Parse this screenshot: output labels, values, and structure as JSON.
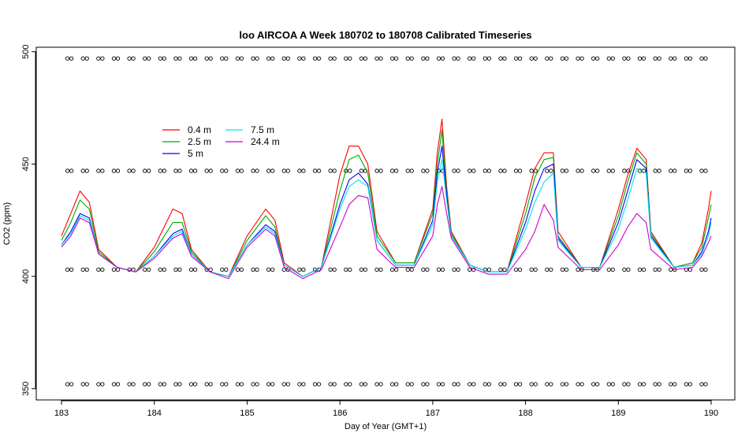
{
  "chart_data": {
    "type": "line",
    "title": "loo AIRCOA A  Week 180702 to 180708  Calibrated Timeseries",
    "xlabel": "Day of Year (GMT+1)",
    "ylabel": "CO2 (ppm)",
    "xlim": [
      182.7,
      190.3
    ],
    "ylim": [
      345,
      502
    ],
    "x_ticks": [
      183,
      184,
      185,
      186,
      187,
      188,
      189,
      190
    ],
    "x_tick_labels": [
      "183",
      "184",
      "185",
      "186",
      "187",
      "188",
      "189",
      "190"
    ],
    "y_ticks": [
      350,
      400,
      450,
      500
    ],
    "y_tick_labels": [
      "350",
      "400",
      "450",
      "500"
    ],
    "grid": false,
    "legend_position": "top-left",
    "series": [
      {
        "name": "0.4 m",
        "color": "#ff0000",
        "x": [
          183.0,
          183.1,
          183.2,
          183.3,
          183.4,
          183.6,
          183.8,
          184.0,
          184.2,
          184.3,
          184.4,
          184.6,
          184.8,
          185.0,
          185.2,
          185.3,
          185.4,
          185.6,
          185.8,
          186.0,
          186.1,
          186.2,
          186.3,
          186.4,
          186.6,
          186.8,
          187.0,
          187.05,
          187.1,
          187.15,
          187.2,
          187.4,
          187.6,
          187.8,
          188.0,
          188.1,
          188.2,
          188.3,
          188.35,
          188.6,
          188.8,
          189.0,
          189.1,
          189.2,
          189.3,
          189.35,
          189.6,
          189.8,
          189.9,
          189.97,
          190.0
        ],
        "y": [
          418,
          428,
          438,
          433,
          412,
          404,
          402,
          413,
          430,
          428,
          412,
          402,
          400,
          418,
          430,
          425,
          406,
          400,
          404,
          445,
          458,
          458,
          450,
          420,
          406,
          406,
          430,
          455,
          470,
          440,
          420,
          405,
          402,
          402,
          432,
          448,
          455,
          455,
          420,
          404,
          404,
          430,
          445,
          457,
          452,
          420,
          404,
          406,
          415,
          430,
          438
        ]
      },
      {
        "name": "2.5 m",
        "color": "#00aa00",
        "x": [
          183.0,
          183.1,
          183.2,
          183.3,
          183.4,
          183.6,
          183.8,
          184.0,
          184.2,
          184.3,
          184.4,
          184.6,
          184.8,
          185.0,
          185.2,
          185.3,
          185.4,
          185.6,
          185.8,
          186.0,
          186.1,
          186.2,
          186.3,
          186.4,
          186.6,
          186.8,
          187.0,
          187.05,
          187.1,
          187.15,
          187.2,
          187.4,
          187.6,
          187.8,
          188.0,
          188.1,
          188.2,
          188.3,
          188.35,
          188.6,
          188.8,
          189.0,
          189.1,
          189.2,
          189.3,
          189.35,
          189.6,
          189.8,
          189.9,
          189.97,
          190.0
        ],
        "y": [
          416,
          424,
          434,
          430,
          411,
          404,
          402,
          411,
          424,
          424,
          411,
          402,
          400,
          416,
          427,
          422,
          405,
          400,
          404,
          438,
          452,
          454,
          446,
          418,
          406,
          406,
          428,
          450,
          465,
          438,
          419,
          405,
          402,
          402,
          428,
          444,
          452,
          453,
          418,
          404,
          404,
          427,
          442,
          455,
          450,
          419,
          404,
          406,
          413,
          426,
          432
        ]
      },
      {
        "name": "5 m",
        "color": "#0000ff",
        "x": [
          183.0,
          183.1,
          183.2,
          183.3,
          183.4,
          183.6,
          183.8,
          184.0,
          184.2,
          184.3,
          184.4,
          184.6,
          184.8,
          185.0,
          185.2,
          185.3,
          185.4,
          185.6,
          185.8,
          186.0,
          186.1,
          186.2,
          186.3,
          186.4,
          186.6,
          186.8,
          187.0,
          187.05,
          187.1,
          187.15,
          187.2,
          187.4,
          187.6,
          187.8,
          188.0,
          188.1,
          188.2,
          188.3,
          188.35,
          188.6,
          188.8,
          189.0,
          189.1,
          189.2,
          189.3,
          189.35,
          189.6,
          189.8,
          189.9,
          189.97,
          190.0
        ],
        "y": [
          414,
          420,
          428,
          426,
          410,
          404,
          402,
          409,
          419,
          421,
          410,
          402,
          400,
          414,
          423,
          420,
          405,
          400,
          404,
          432,
          443,
          446,
          441,
          416,
          405,
          405,
          425,
          446,
          458,
          436,
          418,
          405,
          402,
          402,
          424,
          438,
          448,
          450,
          417,
          404,
          404,
          424,
          438,
          452,
          448,
          418,
          404,
          405,
          411,
          420,
          426
        ]
      },
      {
        "name": "7.5 m",
        "color": "#00e5e5",
        "x": [
          183.0,
          183.1,
          183.2,
          183.3,
          183.4,
          183.6,
          183.8,
          184.0,
          184.2,
          184.3,
          184.4,
          184.6,
          184.8,
          185.0,
          185.2,
          185.3,
          185.4,
          185.6,
          185.8,
          186.0,
          186.1,
          186.2,
          186.3,
          186.4,
          186.6,
          186.8,
          187.0,
          187.05,
          187.1,
          187.15,
          187.2,
          187.4,
          187.6,
          187.8,
          188.0,
          188.1,
          188.2,
          188.3,
          188.35,
          188.6,
          188.8,
          189.0,
          189.1,
          189.2,
          189.3,
          189.35,
          189.6,
          189.8,
          189.9,
          189.97,
          190.0
        ],
        "y": [
          414,
          419,
          427,
          425,
          410,
          404,
          402,
          409,
          418,
          420,
          410,
          402,
          400,
          414,
          422,
          419,
          405,
          400,
          404,
          430,
          440,
          443,
          440,
          416,
          405,
          405,
          423,
          442,
          452,
          434,
          418,
          405,
          402,
          402,
          421,
          433,
          442,
          446,
          416,
          404,
          404,
          421,
          434,
          448,
          446,
          417,
          404,
          405,
          410,
          418,
          424
        ]
      },
      {
        "name": "24.4 m",
        "color": "#cc00cc",
        "x": [
          183.0,
          183.1,
          183.2,
          183.3,
          183.4,
          183.6,
          183.8,
          184.0,
          184.2,
          184.3,
          184.4,
          184.6,
          184.8,
          185.0,
          185.2,
          185.3,
          185.4,
          185.6,
          185.8,
          186.0,
          186.1,
          186.2,
          186.3,
          186.4,
          186.6,
          186.8,
          187.0,
          187.05,
          187.1,
          187.15,
          187.2,
          187.4,
          187.6,
          187.8,
          188.0,
          188.1,
          188.2,
          188.3,
          188.35,
          188.6,
          188.8,
          189.0,
          189.1,
          189.2,
          189.3,
          189.35,
          189.6,
          189.8,
          189.9,
          189.97,
          190.0
        ],
        "y": [
          413,
          418,
          426,
          424,
          410,
          404,
          402,
          408,
          417,
          419,
          409,
          402,
          399,
          413,
          421,
          418,
          404,
          399,
          403,
          422,
          432,
          436,
          435,
          412,
          404,
          404,
          418,
          432,
          440,
          428,
          417,
          404,
          401,
          401,
          412,
          420,
          432,
          425,
          413,
          403,
          403,
          414,
          422,
          428,
          424,
          412,
          403,
          404,
          409,
          415,
          418
        ]
      }
    ],
    "markers": {
      "symbol": "open-circle",
      "color": "#000000",
      "levels": [
        497,
        447,
        403,
        352
      ],
      "x_start": 183.0,
      "x_end": 190.0
    }
  }
}
